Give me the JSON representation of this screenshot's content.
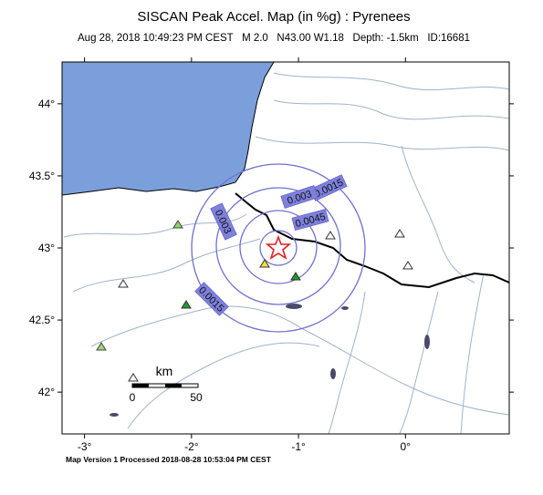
{
  "header": {
    "title": "SISCAN Peak Accel. Map (in %g) : Pyrenees",
    "subtitle": "Aug 28, 2018 10:49:23 PM CEST   M 2.0   N43.00 W1.18   Depth: -1.5km   ID:16681"
  },
  "map": {
    "xlim": [
      -3.21,
      0.97
    ],
    "ylim": [
      41.71,
      44.29
    ],
    "xticks": [
      {
        "value": -3,
        "label": "-3°"
      },
      {
        "value": -2,
        "label": "-2°"
      },
      {
        "value": -1,
        "label": "-1°"
      },
      {
        "value": 0,
        "label": "0°"
      }
    ],
    "yticks": [
      {
        "value": 42,
        "label": "42°"
      },
      {
        "value": 42.5,
        "label": "42.5°"
      },
      {
        "value": 43,
        "label": "43°"
      },
      {
        "value": 43.5,
        "label": "43.5°"
      },
      {
        "value": 44,
        "label": "44°"
      }
    ],
    "contour_labels": [
      "0.0015",
      "0.003",
      "0.0045",
      "0.003",
      "0.0015"
    ],
    "scale_bar": {
      "unit": "km",
      "ticks": [
        0,
        50
      ]
    }
  },
  "footer": "Map Version 1 Processed 2018-08-28 10:53:04 PM CEST"
}
